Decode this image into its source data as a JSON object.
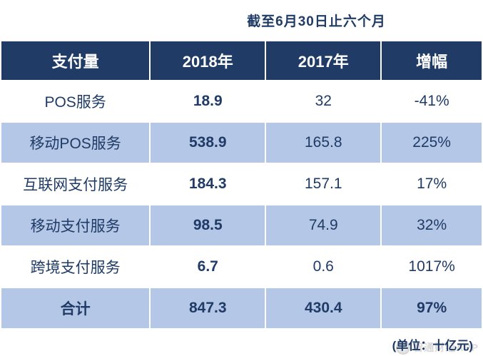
{
  "chart_data": {
    "type": "table",
    "title": "截至6月30日止六个月",
    "columns": [
      "支付量",
      "2018年",
      "2017年",
      "增幅"
    ],
    "rows": [
      [
        "POS服务",
        "18.9",
        "32",
        "-41%"
      ],
      [
        "移动POS服务",
        "538.9",
        "165.8",
        "225%"
      ],
      [
        "互联网支付服务",
        "184.3",
        "157.1",
        "17%"
      ],
      [
        "移动支付服务",
        "98.5",
        "74.9",
        "32%"
      ],
      [
        "跨境支付服务",
        "6.7",
        "0.6",
        "1017%"
      ],
      [
        "合计",
        "847.3",
        "430.4",
        "97%"
      ]
    ],
    "unit": "十亿元"
  },
  "page": {
    "unit_note": "(单位：十亿元)",
    "watermark": "智通财经APP"
  },
  "colors": {
    "header_navy": "#1f3b66",
    "row_light_blue": "#b4c7e7",
    "row_white": "#ffffff",
    "text_navy": "#1f3b66"
  }
}
